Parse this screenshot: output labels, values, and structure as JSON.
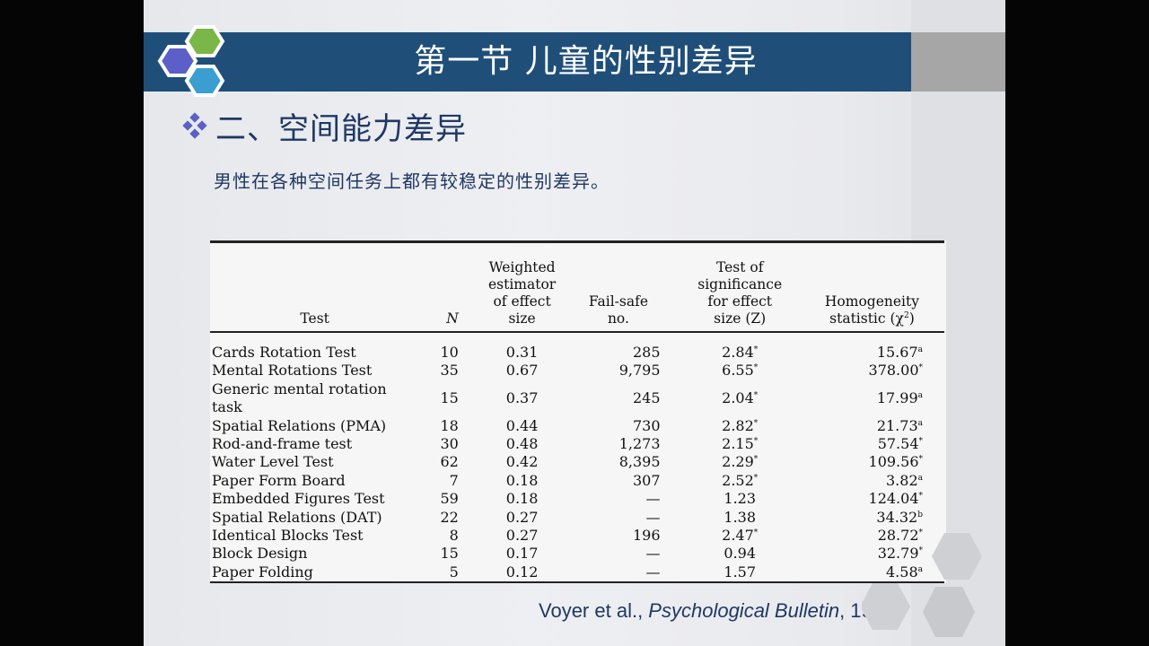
{
  "title": "第一节  儿童的性别差异",
  "heading": "二、空间能力差异",
  "subtitle": "男性在各种空间任务上都有较稳定的性别差异。",
  "table": {
    "headers": {
      "test": "Test",
      "n": "N",
      "weighted": [
        "Weighted",
        "estimator",
        "of effect",
        "size"
      ],
      "failsafe": [
        "Fail-safe",
        "no."
      ],
      "z": [
        "Test of",
        "significance",
        "for effect",
        "size (Z)"
      ],
      "homog": [
        "Homogeneity",
        "statistic (χ"
      ],
      "homog_sup": "2",
      "homog_close": ")"
    },
    "rows": [
      {
        "test": "Cards Rotation Test",
        "n": "10",
        "w": "0.31",
        "f": "285",
        "z": "2.84",
        "zs": "*",
        "h": "15.67",
        "hs": "a"
      },
      {
        "test": "Mental Rotations Test",
        "n": "35",
        "w": "0.67",
        "f": "9,795",
        "z": "6.55",
        "zs": "*",
        "h": "378.00",
        "hs": "*"
      },
      {
        "test": "Generic mental rotation task",
        "n": "15",
        "w": "0.37",
        "f": "245",
        "z": "2.04",
        "zs": "*",
        "h": "17.99",
        "hs": "a"
      },
      {
        "test": "Spatial Relations (PMA)",
        "n": "18",
        "w": "0.44",
        "f": "730",
        "z": "2.82",
        "zs": "*",
        "h": "21.73",
        "hs": "a"
      },
      {
        "test": "Rod-and-frame test",
        "n": "30",
        "w": "0.48",
        "f": "1,273",
        "z": "2.15",
        "zs": "*",
        "h": "57.54",
        "hs": "*"
      },
      {
        "test": "Water Level Test",
        "n": "62",
        "w": "0.42",
        "f": "8,395",
        "z": "2.29",
        "zs": "*",
        "h": "109.56",
        "hs": "*"
      },
      {
        "test": "Paper Form Board",
        "n": "7",
        "w": "0.18",
        "f": "307",
        "z": "2.52",
        "zs": "*",
        "h": "3.82",
        "hs": "a"
      },
      {
        "test": "Embedded Figures Test",
        "n": "59",
        "w": "0.18",
        "f": "—",
        "z": "1.23",
        "zs": "",
        "h": "124.04",
        "hs": "*"
      },
      {
        "test": "Spatial Relations (DAT)",
        "n": "22",
        "w": "0.27",
        "f": "—",
        "z": "1.38",
        "zs": "",
        "h": "34.32",
        "hs": "b"
      },
      {
        "test": "Identical Blocks Test",
        "n": "8",
        "w": "0.27",
        "f": "196",
        "z": "2.47",
        "zs": "*",
        "h": "28.72",
        "hs": "*"
      },
      {
        "test": "Block Design",
        "n": "15",
        "w": "0.17",
        "f": "—",
        "z": "0.94",
        "zs": "",
        "h": "32.79",
        "hs": "*"
      },
      {
        "test": "Paper Folding",
        "n": "5",
        "w": "0.12",
        "f": "—",
        "z": "1.57",
        "zs": "",
        "h": "4.58",
        "hs": "a"
      }
    ]
  },
  "citation": {
    "authors": "Voyer et al., ",
    "journal": "Psychological Bulletin",
    "year": ", 1995"
  },
  "colors": {
    "title_bar": "#1f4e79",
    "hex_purple": "#5b5fc7",
    "hex_green": "#7ab648",
    "hex_blue": "#3a9fd0",
    "heading_text": "#1f3864"
  }
}
